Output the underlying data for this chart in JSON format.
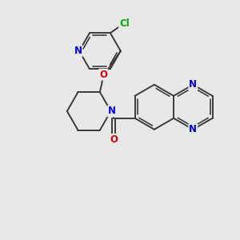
{
  "bg_color": "#e8e8e8",
  "bond_color": "#3a3a3a",
  "bond_width": 1.4,
  "atom_colors": {
    "N": "#0000ee",
    "O": "#dd0000",
    "Cl": "#00aa00",
    "C": "#3a3a3a"
  },
  "font_size": 8.5,
  "fig_bg": "#e8e8e8"
}
